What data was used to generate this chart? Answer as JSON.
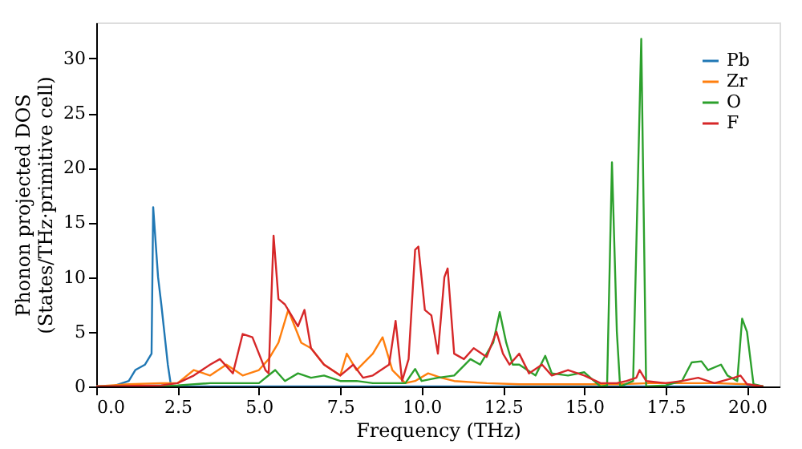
{
  "chart_data": {
    "type": "line",
    "xlabel": "Frequency (THz)",
    "ylabel": "Phonon projected DOS\n(States/THz·primitive cell)",
    "xlim": [
      0,
      21
    ],
    "ylim": [
      0,
      33.3
    ],
    "xticks": [
      {
        "value": 0,
        "label": "0.0"
      },
      {
        "value": 2.5,
        "label": "2.5"
      },
      {
        "value": 5,
        "label": "5.0"
      },
      {
        "value": 7.5,
        "label": "7.5"
      },
      {
        "value": 10,
        "label": "10.0"
      },
      {
        "value": 12.5,
        "label": "12.5"
      },
      {
        "value": 15,
        "label": "15.0"
      },
      {
        "value": 17.5,
        "label": "17.5"
      },
      {
        "value": 20,
        "label": "20.0"
      }
    ],
    "yticks": [
      0,
      5,
      10,
      15,
      20,
      25,
      30
    ],
    "legend": "top right",
    "grid": false,
    "series": [
      {
        "name": "Pb",
        "color": "#1f77b4",
        "x": [
          0,
          0.5,
          1.0,
          1.2,
          1.5,
          1.7,
          1.75,
          1.9,
          2.0,
          2.2,
          2.3,
          3,
          5,
          8,
          10,
          12,
          15,
          18,
          20,
          20.5
        ],
        "values": [
          0,
          0,
          0.5,
          1.5,
          2.0,
          3.0,
          16.4,
          10,
          7.5,
          2,
          0,
          0,
          0,
          0,
          0,
          0,
          0,
          0,
          0,
          0
        ]
      },
      {
        "name": "Zr",
        "color": "#ff7f0e",
        "x": [
          0,
          1,
          2,
          2.5,
          3,
          3.5,
          4,
          4.5,
          5,
          5.3,
          5.6,
          5.9,
          6.1,
          6.3,
          6.6,
          7,
          7.5,
          7.7,
          8,
          8.5,
          8.8,
          9.1,
          9.5,
          9.8,
          10.2,
          10.6,
          11,
          12,
          13,
          14,
          15,
          16,
          17,
          18,
          19,
          20,
          20.5
        ],
        "values": [
          0,
          0.2,
          0.3,
          0.3,
          1.5,
          1,
          2,
          1,
          1.5,
          2.5,
          4,
          7,
          5.5,
          4,
          3.5,
          2,
          1,
          3,
          1.5,
          3,
          4.5,
          1.5,
          0.3,
          0.5,
          1.2,
          0.8,
          0.5,
          0.3,
          0.2,
          0.2,
          0.2,
          0.2,
          0.3,
          0.3,
          0.3,
          0.2,
          0
        ]
      },
      {
        "name": "O",
        "color": "#2ca02c",
        "x": [
          0,
          2.5,
          3.5,
          5,
          5.5,
          5.8,
          6.2,
          6.6,
          7,
          7.5,
          8,
          8.5,
          9.5,
          9.8,
          10,
          10.5,
          11,
          11.5,
          11.8,
          12.2,
          12.4,
          12.6,
          12.8,
          13,
          13.5,
          13.8,
          14,
          14.5,
          15,
          15.3,
          15.5,
          15.7,
          15.85,
          16.0,
          16.1,
          16.5,
          16.75,
          16.9,
          17.5,
          18,
          18.3,
          18.6,
          18.8,
          19.2,
          19.4,
          19.7,
          19.85,
          20.0,
          20.2,
          20.5
        ],
        "values": [
          0,
          0.1,
          0.3,
          0.3,
          1.5,
          0.5,
          1.2,
          0.8,
          1,
          0.5,
          0.5,
          0.3,
          0.3,
          1.6,
          0.5,
          0.8,
          1,
          2.5,
          2,
          4,
          6.8,
          4,
          2,
          2,
          1,
          2.8,
          1.2,
          1.0,
          1.3,
          0.5,
          0,
          0.1,
          20.5,
          5,
          0,
          0.5,
          31.8,
          0,
          0.1,
          0.5,
          2.2,
          2.3,
          1.5,
          2.0,
          1,
          0.5,
          6.2,
          5,
          0.2,
          0
        ]
      },
      {
        "name": "F",
        "color": "#d62728",
        "x": [
          0,
          2,
          2.5,
          3,
          3.5,
          3.8,
          4.2,
          4.5,
          4.8,
          5.2,
          5.3,
          5.45,
          5.6,
          5.8,
          6,
          6.2,
          6.4,
          6.6,
          7,
          7.5,
          7.9,
          8.2,
          8.5,
          9,
          9.2,
          9.4,
          9.6,
          9.8,
          9.9,
          10.1,
          10.3,
          10.5,
          10.7,
          10.8,
          11,
          11.3,
          11.6,
          12,
          12.3,
          12.5,
          12.7,
          13,
          13.3,
          13.7,
          14,
          14.5,
          15,
          15.5,
          16,
          16.3,
          16.6,
          16.7,
          16.9,
          17.5,
          18,
          18.5,
          19,
          19.6,
          19.8,
          20,
          20.5
        ],
        "values": [
          0,
          0.1,
          0.3,
          1,
          2,
          2.5,
          1.2,
          4.8,
          4.5,
          1.5,
          1.2,
          13.8,
          8,
          7.5,
          6.5,
          5.5,
          7,
          3.5,
          2,
          1,
          2,
          0.8,
          1,
          2,
          6,
          0.5,
          2.5,
          12.5,
          12.8,
          7,
          6.5,
          3,
          10,
          10.8,
          3,
          2.5,
          3.5,
          2.7,
          5,
          3,
          2,
          3,
          1.2,
          2,
          1,
          1.5,
          1,
          0.3,
          0.3,
          0.5,
          0.8,
          1.5,
          0.5,
          0.3,
          0.5,
          0.8,
          0.3,
          0.8,
          1.0,
          0.2,
          0
        ]
      }
    ]
  }
}
